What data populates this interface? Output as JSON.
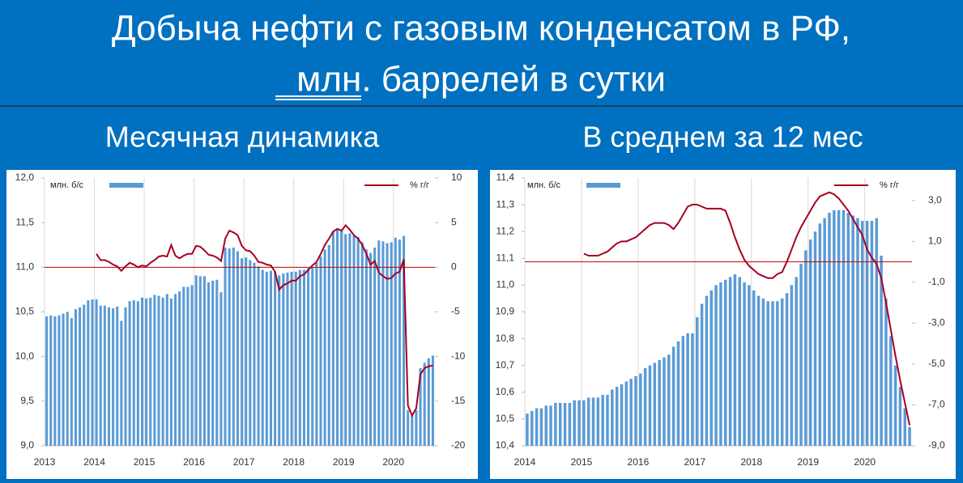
{
  "title_lines": [
    "Добыча нефти с газовым конденсатом в РФ,",
    "млн. баррелей в сутки"
  ],
  "chart_data": [
    {
      "type": "bar_line",
      "title": "Месячная динамика",
      "categories": [
        "2013",
        null,
        null,
        null,
        null,
        null,
        null,
        null,
        null,
        null,
        null,
        null,
        "2014",
        null,
        null,
        null,
        null,
        null,
        null,
        null,
        null,
        null,
        null,
        null,
        "2015",
        null,
        null,
        null,
        null,
        null,
        null,
        null,
        null,
        null,
        null,
        null,
        "2016",
        null,
        null,
        null,
        null,
        null,
        null,
        null,
        null,
        null,
        null,
        null,
        "2017",
        null,
        null,
        null,
        null,
        null,
        null,
        null,
        null,
        null,
        null,
        null,
        "2018",
        null,
        null,
        null,
        null,
        null,
        null,
        null,
        null,
        null,
        null,
        null,
        "2019",
        null,
        null,
        null,
        null,
        null,
        null,
        null,
        null,
        null,
        null,
        null,
        "2020",
        null,
        null,
        null,
        null,
        null,
        null,
        null,
        null,
        null
      ],
      "series": [
        {
          "name": "млн. б/с",
          "type": "bar",
          "color": "#5b9bd5",
          "values": [
            10.45,
            10.46,
            10.45,
            10.46,
            10.48,
            10.5,
            10.43,
            10.53,
            10.55,
            10.58,
            10.63,
            10.64,
            10.64,
            10.57,
            10.57,
            10.55,
            10.54,
            10.56,
            10.4,
            10.55,
            10.62,
            10.63,
            10.62,
            10.66,
            10.65,
            10.66,
            10.69,
            10.68,
            10.66,
            10.7,
            10.65,
            10.7,
            10.73,
            10.78,
            10.78,
            10.8,
            10.91,
            10.9,
            10.9,
            10.83,
            10.85,
            10.86,
            10.72,
            11.22,
            11.21,
            11.22,
            11.18,
            11.1,
            11.11,
            11.08,
            11.05,
            11.01,
            10.97,
            10.95,
            10.96,
            10.95,
            10.91,
            10.93,
            10.94,
            10.95,
            10.95,
            10.97,
            10.97,
            10.99,
            11.0,
            11.05,
            11.12,
            11.2,
            11.25,
            11.4,
            11.42,
            11.41,
            11.37,
            11.38,
            11.36,
            11.34,
            11.28,
            11.2,
            11.16,
            11.22,
            11.3,
            11.29,
            11.27,
            11.28,
            11.33,
            11.31,
            11.35,
            9.4,
            9.35,
            9.4,
            9.87,
            9.93,
            9.98,
            10.01
          ]
        },
        {
          "name": "% г/г",
          "type": "line",
          "axis": "y2",
          "color": "#a50021",
          "values": [
            null,
            null,
            null,
            null,
            null,
            null,
            null,
            null,
            null,
            null,
            null,
            null,
            1.5,
            0.8,
            0.8,
            0.6,
            0.3,
            0.1,
            -0.4,
            0.1,
            0.5,
            0.3,
            0.0,
            0.2,
            0.1,
            0.5,
            0.8,
            1.2,
            1.3,
            1.2,
            2.5,
            1.3,
            1.0,
            1.3,
            1.5,
            1.5,
            2.4,
            2.3,
            1.9,
            1.4,
            1.3,
            1.1,
            0.7,
            3.2,
            4.1,
            3.9,
            3.6,
            2.4,
            1.9,
            1.8,
            1.3,
            0.6,
            0.5,
            0.3,
            0.2,
            -0.5,
            -2.5,
            -2.0,
            -1.8,
            -1.5,
            -1.5,
            -1.0,
            -0.8,
            -0.3,
            0.2,
            0.6,
            1.5,
            2.5,
            3.2,
            4.0,
            4.3,
            4.1,
            4.7,
            4.2,
            3.6,
            3.2,
            2.5,
            1.5,
            0.3,
            0.7,
            -0.6,
            -1.0,
            -1.3,
            -1.2,
            -0.7,
            -0.5,
            0.9,
            -15.5,
            -16.6,
            -15.8,
            -12.0,
            -11.3,
            -11.1,
            -11.0
          ]
        }
      ],
      "ylim": [
        9,
        12
      ],
      "yticks": [
        {
          "value": 9,
          "label": "9,0"
        },
        {
          "value": 9.5,
          "label": "9,5"
        },
        {
          "value": 10,
          "label": "10,0"
        },
        {
          "value": 10.5,
          "label": "10,5"
        },
        {
          "value": 11,
          "label": "11,0"
        },
        {
          "value": 11.5,
          "label": "11,5"
        },
        {
          "value": 12,
          "label": "12,0"
        }
      ],
      "y2lim": [
        -20,
        10
      ],
      "y2ticks": [
        -20,
        -15,
        -10,
        -5,
        0,
        5,
        10
      ],
      "reference_line": {
        "axis": "y2",
        "value": 0,
        "color": "#c00000"
      },
      "x_grid": true
    },
    {
      "type": "bar_line",
      "title": "В среднем за 12 мес",
      "categories": [
        "2014",
        null,
        null,
        null,
        null,
        null,
        null,
        null,
        null,
        null,
        null,
        null,
        "2015",
        null,
        null,
        null,
        null,
        null,
        null,
        null,
        null,
        null,
        null,
        null,
        "2016",
        null,
        null,
        null,
        null,
        null,
        null,
        null,
        null,
        null,
        null,
        null,
        "2017",
        null,
        null,
        null,
        null,
        null,
        null,
        null,
        null,
        null,
        null,
        null,
        "2018",
        null,
        null,
        null,
        null,
        null,
        null,
        null,
        null,
        null,
        null,
        null,
        "2019",
        null,
        null,
        null,
        null,
        null,
        null,
        null,
        null,
        null,
        null,
        null,
        "2020",
        null,
        null,
        null,
        null,
        null,
        null,
        null,
        null,
        null
      ],
      "series": [
        {
          "name": "млн. б/с",
          "type": "bar",
          "color": "#5b9bd5",
          "values": [
            10.52,
            10.53,
            10.54,
            10.54,
            10.55,
            10.55,
            10.56,
            10.56,
            10.56,
            10.56,
            10.57,
            10.57,
            10.57,
            10.58,
            10.58,
            10.58,
            10.59,
            10.59,
            10.61,
            10.62,
            10.63,
            10.64,
            10.65,
            10.66,
            10.67,
            10.69,
            10.7,
            10.71,
            10.72,
            10.73,
            10.74,
            10.77,
            10.79,
            10.81,
            10.82,
            10.82,
            10.88,
            10.93,
            10.96,
            10.98,
            11.0,
            11.01,
            11.02,
            11.03,
            11.04,
            11.03,
            11.01,
            11.0,
            10.98,
            10.96,
            10.95,
            10.94,
            10.94,
            10.94,
            10.95,
            10.97,
            11.0,
            11.03,
            11.08,
            11.13,
            11.17,
            11.2,
            11.23,
            11.25,
            11.27,
            11.28,
            11.28,
            11.28,
            11.27,
            11.26,
            11.25,
            11.24,
            11.24,
            11.24,
            11.25,
            11.11,
            10.95,
            10.81,
            10.7,
            10.62,
            10.54,
            10.47
          ]
        },
        {
          "name": "% г/г",
          "type": "line",
          "axis": "y2",
          "color": "#a50021",
          "values": [
            null,
            null,
            null,
            null,
            null,
            null,
            null,
            null,
            null,
            null,
            null,
            null,
            0.4,
            0.3,
            0.3,
            0.3,
            0.4,
            0.5,
            0.7,
            0.9,
            1.0,
            1.0,
            1.1,
            1.2,
            1.4,
            1.6,
            1.8,
            1.9,
            1.9,
            1.9,
            1.8,
            1.6,
            1.9,
            2.3,
            2.7,
            2.8,
            2.8,
            2.7,
            2.6,
            2.6,
            2.6,
            2.6,
            2.5,
            1.9,
            1.2,
            0.6,
            0.1,
            -0.2,
            -0.4,
            -0.6,
            -0.7,
            -0.8,
            -0.8,
            -0.6,
            -0.5,
            0.0,
            0.6,
            1.2,
            1.7,
            2.1,
            2.5,
            2.9,
            3.2,
            3.3,
            3.4,
            3.3,
            3.1,
            2.8,
            2.5,
            2.1,
            1.7,
            1.3,
            0.6,
            0.2,
            -0.1,
            -0.8,
            -2.0,
            -3.3,
            -4.6,
            -5.8,
            -6.9,
            -8.0
          ]
        }
      ],
      "ylim": [
        10.4,
        11.4
      ],
      "yticks": [
        {
          "value": 10.4,
          "label": "10,4"
        },
        {
          "value": 10.5,
          "label": "10,5"
        },
        {
          "value": 10.6,
          "label": "10,6"
        },
        {
          "value": 10.7,
          "label": "10,7"
        },
        {
          "value": 10.8,
          "label": "10,8"
        },
        {
          "value": 10.9,
          "label": "10,9"
        },
        {
          "value": 11.0,
          "label": "11,0"
        },
        {
          "value": 11.1,
          "label": "11,1"
        },
        {
          "value": 11.2,
          "label": "11,2"
        },
        {
          "value": 11.3,
          "label": "11,3"
        },
        {
          "value": 11.4,
          "label": "11,4"
        }
      ],
      "y2lim": [
        -9,
        4.1
      ],
      "y2ticks": [
        {
          "value": -9,
          "label": "-9,0"
        },
        {
          "value": -7,
          "label": "-7,0"
        },
        {
          "value": -5,
          "label": "-5,0"
        },
        {
          "value": -3,
          "label": "-3,0"
        },
        {
          "value": -1,
          "label": "-1,0"
        },
        {
          "value": 1,
          "label": "1,0"
        },
        {
          "value": 3,
          "label": "3,0"
        }
      ],
      "reference_line": {
        "axis": "y2",
        "value": 0,
        "color": "#c00000"
      },
      "x_grid": true
    }
  ]
}
